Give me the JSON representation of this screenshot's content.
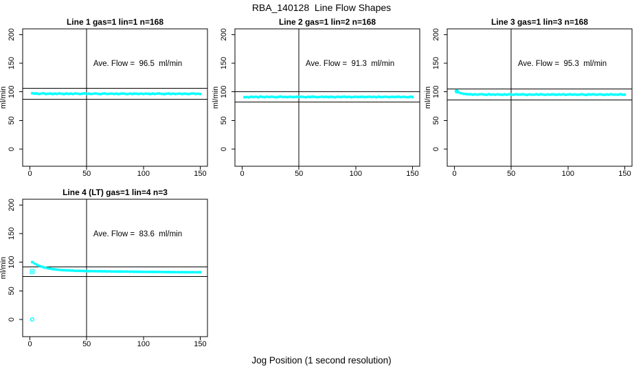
{
  "figure": {
    "title": "RBA_140128  Line Flow Shapes",
    "xlabel": "Jog Position (1 second resolution)"
  },
  "colors": {
    "point": "#00FFFF",
    "axis": "#000000",
    "background": "#FFFFFF"
  },
  "chart_data": [
    {
      "type": "scatter",
      "title": "Line 1 gas=1 lin=1 n=168",
      "annotation": "Ave. Flow =  96.5  ml/min",
      "ave_flow_ml_min": 96.5,
      "n": 168,
      "ylabel": "ml/min",
      "xlim": [
        -6.4,
        156.4
      ],
      "ylim": [
        -30,
        210
      ],
      "xticks": [
        0,
        50,
        100,
        150
      ],
      "yticks": [
        0,
        50,
        100,
        150,
        200
      ],
      "grid": false,
      "legend": "none",
      "vline_x": 50,
      "hlines": [
        106.2,
        86.9
      ],
      "annotation_pos": {
        "x": 95,
        "y": 150
      },
      "x": [
        2,
        4,
        6,
        8,
        10,
        12,
        14,
        16,
        18,
        20,
        22,
        24,
        26,
        28,
        30,
        32,
        34,
        36,
        38,
        40,
        42,
        44,
        46,
        48,
        50,
        52,
        54,
        56,
        58,
        60,
        62,
        64,
        66,
        68,
        70,
        72,
        74,
        76,
        78,
        80,
        82,
        84,
        86,
        88,
        90,
        92,
        94,
        96,
        98,
        100,
        102,
        104,
        106,
        108,
        110,
        112,
        114,
        116,
        118,
        120,
        122,
        124,
        126,
        128,
        130,
        132,
        134,
        136,
        138,
        140,
        142,
        144,
        146,
        148,
        150
      ],
      "y": [
        97.6,
        96.8,
        97.2,
        96.3,
        96.9,
        97.4,
        96.1,
        96.7,
        97.0,
        96.4,
        96.9,
        96.2,
        97.3,
        96.6,
        96.0,
        97.1,
        96.5,
        96.9,
        96.3,
        97.2,
        96.7,
        96.1,
        96.8,
        97.3,
        96.4,
        96.9,
        96.2,
        96.7,
        97.1,
        96.5,
        96.0,
        96.8,
        97.2,
        96.3,
        96.6,
        97.0,
        96.4,
        96.9,
        96.1,
        96.7,
        97.2,
        96.5,
        96.0,
        96.8,
        96.3,
        97.1,
        96.6,
        96.2,
        96.9,
        96.4,
        97.0,
        96.6,
        96.1,
        96.8,
        96.3,
        96.9,
        97.2,
        96.5,
        96.0,
        96.7,
        97.1,
        96.4,
        96.8,
        96.2,
        96.6,
        97.0,
        96.3,
        96.9,
        96.5,
        96.1,
        96.8,
        97.2,
        96.4,
        96.7,
        96.3
      ],
      "extra_points": []
    },
    {
      "type": "scatter",
      "title": "Line 2 gas=1 lin=2 n=168",
      "annotation": "Ave. Flow =  91.3  ml/min",
      "ave_flow_ml_min": 91.3,
      "n": 168,
      "ylabel": "ml/min",
      "xlim": [
        -6.4,
        156.4
      ],
      "ylim": [
        -30,
        210
      ],
      "xticks": [
        0,
        50,
        100,
        150
      ],
      "yticks": [
        0,
        50,
        100,
        150,
        200
      ],
      "grid": false,
      "legend": "none",
      "vline_x": 50,
      "hlines": [
        100.4,
        82.2
      ],
      "annotation_pos": {
        "x": 95,
        "y": 150
      },
      "x": [
        2,
        4,
        6,
        8,
        10,
        12,
        14,
        16,
        18,
        20,
        22,
        24,
        26,
        28,
        30,
        32,
        34,
        36,
        38,
        40,
        42,
        44,
        46,
        48,
        50,
        52,
        54,
        56,
        58,
        60,
        62,
        64,
        66,
        68,
        70,
        72,
        74,
        76,
        78,
        80,
        82,
        84,
        86,
        88,
        90,
        92,
        94,
        96,
        98,
        100,
        102,
        104,
        106,
        108,
        110,
        112,
        114,
        116,
        118,
        120,
        122,
        124,
        126,
        128,
        130,
        132,
        134,
        136,
        138,
        140,
        142,
        144,
        146,
        148,
        150
      ],
      "y": [
        90.6,
        91.0,
        90.4,
        91.5,
        90.8,
        91.3,
        90.5,
        91.8,
        91.1,
        90.7,
        91.4,
        90.9,
        91.6,
        91.0,
        90.5,
        91.3,
        91.7,
        90.8,
        91.2,
        90.6,
        91.5,
        91.0,
        90.7,
        91.4,
        90.9,
        91.6,
        91.1,
        90.5,
        91.3,
        90.8,
        91.7,
        91.2,
        90.6,
        91.0,
        91.5,
        90.9,
        91.3,
        90.7,
        91.6,
        91.1,
        90.5,
        91.4,
        90.8,
        91.2,
        91.7,
        90.9,
        91.3,
        90.6,
        91.0,
        91.5,
        90.8,
        91.2,
        91.6,
        90.7,
        91.1,
        91.4,
        90.9,
        91.3,
        90.5,
        91.7,
        91.0,
        90.8,
        91.4,
        91.1,
        90.6,
        91.5,
        90.9,
        91.2,
        91.6,
        90.7,
        91.3,
        91.0,
        90.5,
        91.4,
        90.8
      ],
      "extra_points": []
    },
    {
      "type": "scatter",
      "title": "Line 3 gas=1 lin=3 n=168",
      "annotation": "Ave. Flow =  95.3  ml/min",
      "ave_flow_ml_min": 95.3,
      "n": 168,
      "ylabel": "ml/min",
      "xlim": [
        -6.4,
        156.4
      ],
      "ylim": [
        -30,
        210
      ],
      "xticks": [
        0,
        50,
        100,
        150
      ],
      "yticks": [
        0,
        50,
        100,
        150,
        200
      ],
      "grid": false,
      "legend": "none",
      "vline_x": 50,
      "hlines": [
        104.8,
        85.8
      ],
      "annotation_pos": {
        "x": 95,
        "y": 150
      },
      "x": [
        2,
        4,
        6,
        8,
        10,
        12,
        14,
        16,
        18,
        20,
        22,
        24,
        26,
        28,
        30,
        32,
        34,
        36,
        38,
        40,
        42,
        44,
        46,
        48,
        50,
        52,
        54,
        56,
        58,
        60,
        62,
        64,
        66,
        68,
        70,
        72,
        74,
        76,
        78,
        80,
        82,
        84,
        86,
        88,
        90,
        92,
        94,
        96,
        98,
        100,
        102,
        104,
        106,
        108,
        110,
        112,
        114,
        116,
        118,
        120,
        122,
        124,
        126,
        128,
        130,
        132,
        134,
        136,
        138,
        140,
        142,
        144,
        146,
        148,
        150
      ],
      "y": [
        100.8,
        98.6,
        97.4,
        96.6,
        96.1,
        95.8,
        95.6,
        95.2,
        95.7,
        95.0,
        95.5,
        95.9,
        95.3,
        94.8,
        95.6,
        95.1,
        95.4,
        94.9,
        95.7,
        95.2,
        94.8,
        95.5,
        95.0,
        95.8,
        95.3,
        94.9,
        95.6,
        95.1,
        95.4,
        95.8,
        95.0,
        94.7,
        95.5,
        95.2,
        94.9,
        95.6,
        95.1,
        95.7,
        95.3,
        94.8,
        95.4,
        95.0,
        95.8,
        95.2,
        94.9,
        95.5,
        95.1,
        95.6,
        94.8,
        95.3,
        95.7,
        95.0,
        95.4,
        94.9,
        95.2,
        95.8,
        95.1,
        94.7,
        95.5,
        95.0,
        95.6,
        95.3,
        94.9,
        95.7,
        95.2,
        94.8,
        95.4,
        95.1,
        95.6,
        95.0,
        95.3,
        94.9,
        95.7,
        95.2,
        95.0
      ],
      "extra_points": [
        {
          "x": 2,
          "y": 100.8,
          "marker": "open-circle"
        }
      ]
    },
    {
      "type": "scatter",
      "title": "Line 4 (LT) gas=1 lin=4 n=3",
      "annotation": "Ave. Flow =  83.6  ml/min",
      "ave_flow_ml_min": 83.6,
      "n": 3,
      "ylabel": "ml/min",
      "xlim": [
        -6.4,
        156.4
      ],
      "ylim": [
        -30,
        210
      ],
      "xticks": [
        0,
        50,
        100,
        150
      ],
      "yticks": [
        0,
        50,
        100,
        150,
        200
      ],
      "grid": false,
      "legend": "none",
      "vline_x": 50,
      "hlines": [
        92.0,
        75.2
      ],
      "annotation_pos": {
        "x": 95,
        "y": 150
      },
      "x": [
        2,
        4,
        6,
        8,
        10,
        12,
        14,
        16,
        18,
        20,
        22,
        24,
        26,
        28,
        30,
        32,
        34,
        36,
        38,
        40,
        42,
        44,
        46,
        48,
        50,
        52,
        54,
        56,
        58,
        60,
        62,
        64,
        66,
        68,
        70,
        72,
        74,
        76,
        78,
        80,
        82,
        84,
        86,
        88,
        90,
        92,
        94,
        96,
        98,
        100,
        102,
        104,
        106,
        108,
        110,
        112,
        114,
        116,
        118,
        120,
        122,
        124,
        126,
        128,
        130,
        132,
        134,
        136,
        138,
        140,
        142,
        144,
        146,
        148,
        150
      ],
      "y": [
        100.2,
        97.8,
        95.7,
        93.8,
        92.5,
        91.1,
        90.3,
        89.3,
        88.8,
        88.0,
        87.6,
        87.0,
        86.8,
        86.3,
        86.2,
        85.8,
        85.8,
        85.4,
        85.4,
        85.0,
        85.1,
        84.8,
        84.9,
        84.6,
        84.7,
        84.4,
        84.5,
        84.3,
        84.4,
        84.1,
        84.3,
        84.0,
        84.1,
        83.9,
        84.0,
        83.8,
        83.9,
        83.7,
        83.8,
        83.6,
        83.7,
        83.5,
        83.6,
        83.4,
        83.5,
        83.3,
        83.4,
        83.3,
        83.3,
        83.2,
        83.2,
        83.1,
        83.2,
        83.0,
        83.1,
        82.9,
        83.0,
        82.9,
        82.9,
        82.8,
        82.9,
        82.7,
        82.8,
        82.7,
        82.7,
        82.6,
        82.7,
        82.6,
        82.6,
        82.5,
        82.6,
        82.5,
        82.5,
        82.6,
        82.4
      ],
      "extra_points": [
        {
          "x": 2,
          "y": 0,
          "marker": "open-circle"
        },
        {
          "x": 2,
          "y": 83.6,
          "marker": "square-plus"
        }
      ]
    }
  ]
}
